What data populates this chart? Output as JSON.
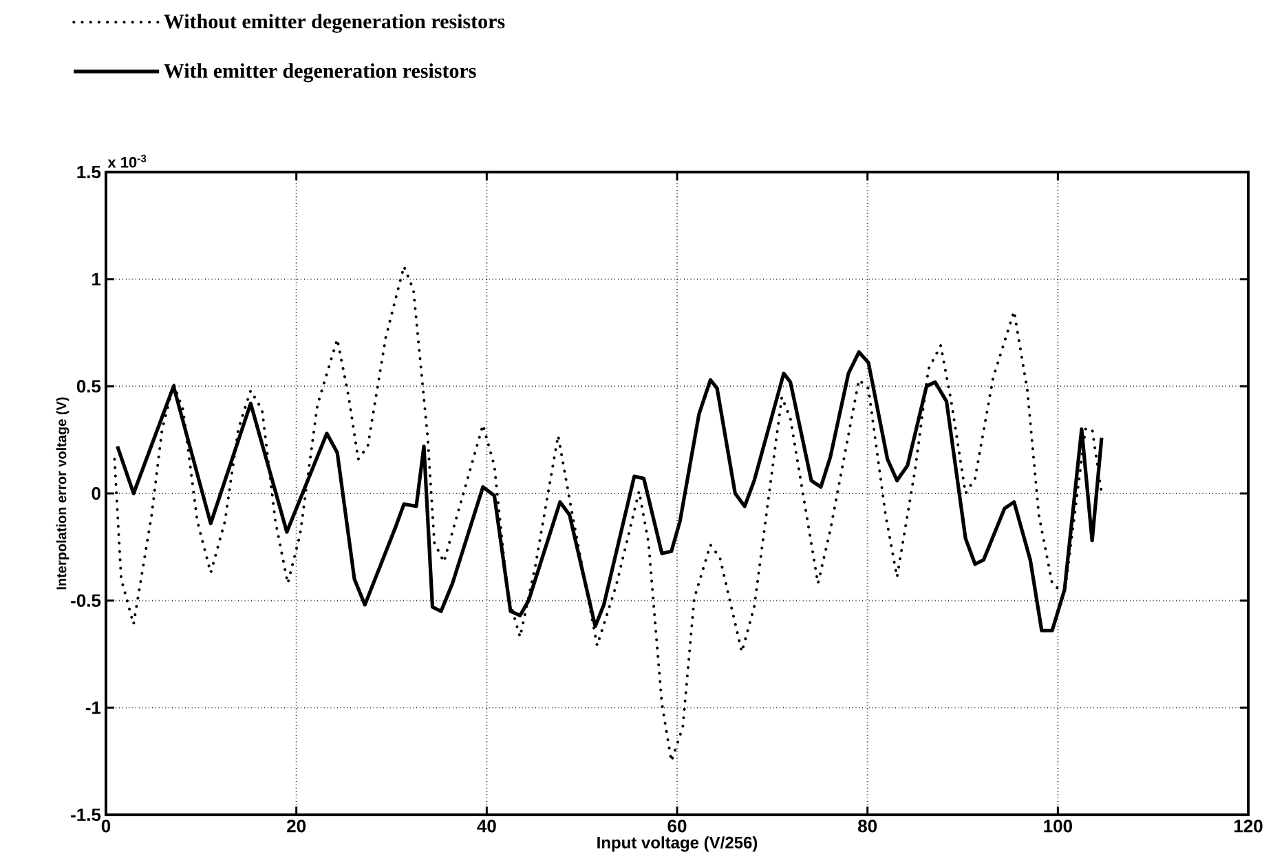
{
  "chart_data": {
    "type": "line",
    "xlabel": "Input voltage (V/256)",
    "ylabel": "Interpolation error voltage (V)",
    "annotations": [
      "x 10$^{-3}$"
    ],
    "xlim": [
      0,
      120
    ],
    "xticks": [
      0,
      20,
      40,
      60,
      80,
      100,
      120
    ],
    "ylim": [
      -1.5,
      1.5
    ],
    "yticks": [
      -1.5,
      -1,
      -0.5,
      0,
      0.5,
      1,
      1.5
    ],
    "grid": true,
    "legend": "top left",
    "series": [
      {
        "name": "Without emitter degeneration resistors",
        "color": "#000000",
        "line_style": "dotted",
        "x": [
          0.9,
          1.6,
          2.9,
          4.8,
          5.9,
          7.1,
          8.1,
          9.6,
          11,
          12.5,
          13.9,
          15.2,
          16.4,
          17.8,
          19.1,
          20.4,
          22.2,
          24.3,
          25.5,
          26.5,
          27.5,
          29.4,
          31.3,
          32.3,
          33.8,
          34.5,
          35.5,
          37.1,
          39.6,
          40.8,
          42.2,
          43.5,
          45.1,
          47.5,
          49,
          51.6,
          53.6,
          56,
          57,
          58.4,
          59.4,
          60.6,
          61.8,
          63.5,
          64.5,
          66.8,
          68.1,
          71,
          71.9,
          74.8,
          76.1,
          79.1,
          80.1,
          81.9,
          83.1,
          85,
          86.4,
          87.7,
          88.8,
          90.3,
          91.3,
          93.2,
          95.4,
          96.8,
          98,
          99.4,
          100.7,
          102.9,
          103.6,
          104.6
        ],
        "values": [
          0.16,
          -0.4,
          -0.61,
          -0.1,
          0.3,
          0.51,
          0.39,
          -0.13,
          -0.37,
          -0.13,
          0.3,
          0.48,
          0.39,
          -0.13,
          -0.42,
          -0.19,
          0.41,
          0.72,
          0.45,
          0.16,
          0.22,
          0.73,
          1.06,
          0.95,
          0.26,
          -0.23,
          -0.32,
          -0.07,
          0.32,
          0.13,
          -0.47,
          -0.67,
          -0.34,
          0.27,
          -0.1,
          -0.71,
          -0.43,
          0.01,
          -0.23,
          -0.98,
          -1.25,
          -1.09,
          -0.49,
          -0.24,
          -0.3,
          -0.74,
          -0.53,
          0.45,
          0.35,
          -0.42,
          -0.17,
          0.53,
          0.49,
          -0.1,
          -0.39,
          0.11,
          0.58,
          0.69,
          0.43,
          0.0,
          0.07,
          0.54,
          0.85,
          0.48,
          -0.1,
          -0.42,
          -0.47,
          0.3,
          0.3,
          0.0
        ]
      },
      {
        "name": "With emitter degeneration resistors",
        "color": "#000000",
        "line_style": "solid",
        "x": [
          1.2,
          2.9,
          7.1,
          11,
          15.2,
          19,
          23.2,
          24.3,
          26.1,
          27.2,
          30.4,
          31.3,
          32.6,
          33.4,
          34.3,
          35.2,
          36.4,
          39.6,
          40.8,
          42.5,
          43.5,
          44.4,
          47.7,
          48.7,
          51.4,
          52.3,
          55.5,
          56.5,
          58.4,
          59.4,
          60.3,
          62.3,
          63.5,
          64.2,
          66.1,
          67.1,
          68.1,
          71.2,
          71.9,
          74.1,
          75.1,
          76.1,
          78,
          79.1,
          80.1,
          82.1,
          83.1,
          84.2,
          86.2,
          87.1,
          88.3,
          90.3,
          91.3,
          92.2,
          94.4,
          95.4,
          97.1,
          98.3,
          99.4,
          100.7,
          102.5,
          103.6,
          104.6
        ],
        "values": [
          0.22,
          0.0,
          0.5,
          -0.14,
          0.42,
          -0.18,
          0.28,
          0.19,
          -0.4,
          -0.52,
          -0.16,
          -0.05,
          -0.06,
          0.22,
          -0.53,
          -0.55,
          -0.42,
          0.03,
          -0.01,
          -0.55,
          -0.57,
          -0.5,
          -0.04,
          -0.1,
          -0.62,
          -0.52,
          0.08,
          0.07,
          -0.28,
          -0.27,
          -0.13,
          0.37,
          0.53,
          0.49,
          0.0,
          -0.06,
          0.06,
          0.56,
          0.52,
          0.06,
          0.03,
          0.17,
          0.56,
          0.66,
          0.61,
          0.16,
          0.06,
          0.13,
          0.5,
          0.52,
          0.43,
          -0.21,
          -0.33,
          -0.31,
          -0.07,
          -0.04,
          -0.31,
          -0.64,
          -0.64,
          -0.45,
          0.3,
          -0.22,
          0.26
        ]
      }
    ]
  }
}
